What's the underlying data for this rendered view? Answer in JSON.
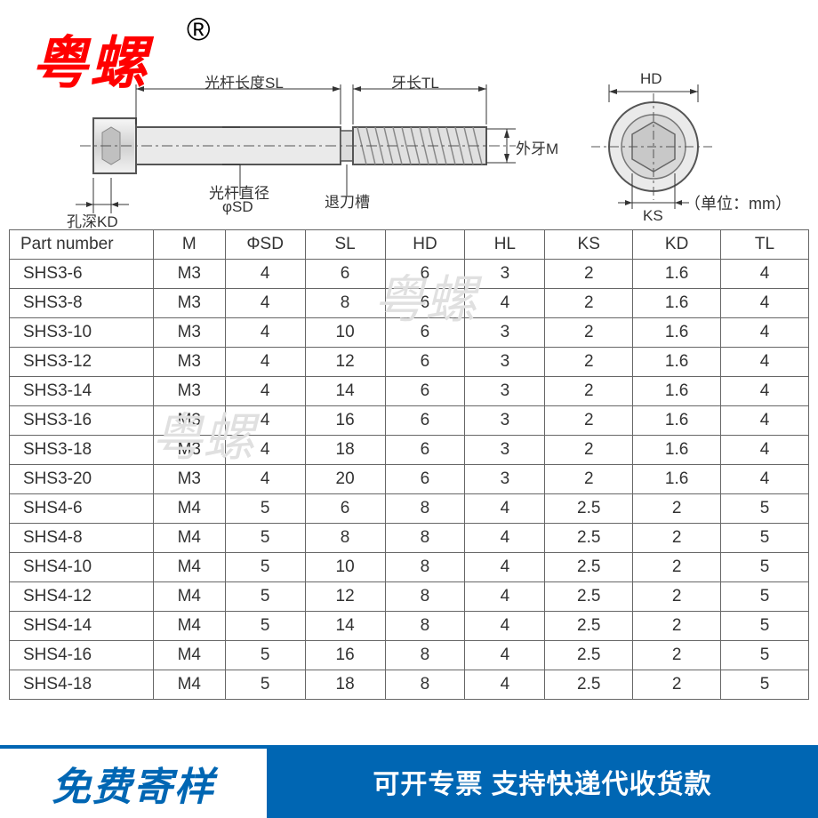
{
  "brand": {
    "name": "粤螺",
    "reg": "®"
  },
  "diagram": {
    "label_sl": "光杆长度SL",
    "label_tl": "牙长TL",
    "label_m": "外牙M",
    "label_sd_line1": "光杆直径",
    "label_sd_line2": "φSD",
    "label_groove": "退刀槽",
    "label_kd": "孔深KD",
    "label_hd": "HD",
    "label_ks": "KS"
  },
  "unit_text": "（单位：mm）",
  "table": {
    "headers": [
      "Part number",
      "M",
      "ΦSD",
      "SL",
      "HD",
      "HL",
      "KS",
      "KD",
      "TL"
    ],
    "col_widths": [
      "18%",
      "9%",
      "10%",
      "10%",
      "10%",
      "10%",
      "11%",
      "11%",
      "11%"
    ],
    "rows": [
      [
        "SHS3-6",
        "M3",
        "4",
        "6",
        "6",
        "3",
        "2",
        "1.6",
        "4"
      ],
      [
        "SHS3-8",
        "M3",
        "4",
        "8",
        "6",
        "4",
        "2",
        "1.6",
        "4"
      ],
      [
        "SHS3-10",
        "M3",
        "4",
        "10",
        "6",
        "3",
        "2",
        "1.6",
        "4"
      ],
      [
        "SHS3-12",
        "M3",
        "4",
        "12",
        "6",
        "3",
        "2",
        "1.6",
        "4"
      ],
      [
        "SHS3-14",
        "M3",
        "4",
        "14",
        "6",
        "3",
        "2",
        "1.6",
        "4"
      ],
      [
        "SHS3-16",
        "M3",
        "4",
        "16",
        "6",
        "3",
        "2",
        "1.6",
        "4"
      ],
      [
        "SHS3-18",
        "M3",
        "4",
        "18",
        "6",
        "3",
        "2",
        "1.6",
        "4"
      ],
      [
        "SHS3-20",
        "M3",
        "4",
        "20",
        "6",
        "3",
        "2",
        "1.6",
        "4"
      ],
      [
        "SHS4-6",
        "M4",
        "5",
        "6",
        "8",
        "4",
        "2.5",
        "2",
        "5"
      ],
      [
        "SHS4-8",
        "M4",
        "5",
        "8",
        "8",
        "4",
        "2.5",
        "2",
        "5"
      ],
      [
        "SHS4-10",
        "M4",
        "5",
        "10",
        "8",
        "4",
        "2.5",
        "2",
        "5"
      ],
      [
        "SHS4-12",
        "M4",
        "5",
        "12",
        "8",
        "4",
        "2.5",
        "2",
        "5"
      ],
      [
        "SHS4-14",
        "M4",
        "5",
        "14",
        "8",
        "4",
        "2.5",
        "2",
        "5"
      ],
      [
        "SHS4-16",
        "M4",
        "5",
        "16",
        "8",
        "4",
        "2.5",
        "2",
        "5"
      ],
      [
        "SHS4-18",
        "M4",
        "5",
        "18",
        "8",
        "4",
        "2.5",
        "2",
        "5"
      ]
    ]
  },
  "watermark_text": "粤螺",
  "footer": {
    "left": "免费寄样",
    "right": "可开专票 支持快递代收货款"
  },
  "colors": {
    "brand_red": "#ff0000",
    "footer_blue": "#0066b3",
    "border": "#666666",
    "text": "#333333",
    "watermark": "#e0e0e0"
  }
}
